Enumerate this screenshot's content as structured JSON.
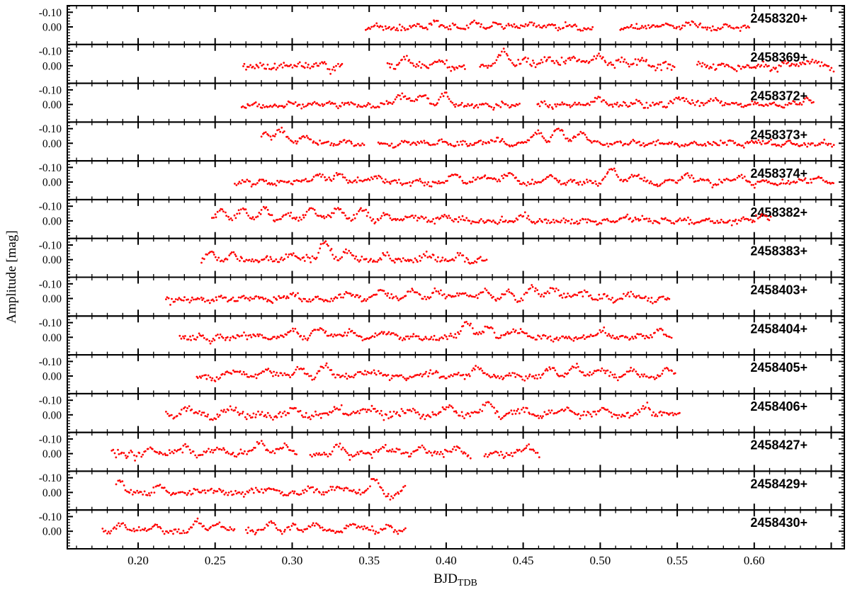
{
  "chart_data": {
    "type": "scatter",
    "title": "",
    "ylabel": "Amplitude [mag]",
    "xlabel": {
      "main": "BJD",
      "sub": "TDB"
    },
    "xlim": [
      0.154,
      0.6585
    ],
    "x_ticks": [
      0.2,
      0.25,
      0.3,
      0.35,
      0.4,
      0.45,
      0.5,
      0.55,
      0.6
    ],
    "x_tick_labels": [
      "0.20",
      "0.25",
      "0.30",
      "0.35",
      "0.40",
      "0.45",
      "0.50",
      "0.55",
      "0.60"
    ],
    "x_minor_step": 0.01,
    "y_axis_inverted": true,
    "ylim_per_panel": [
      -0.145,
      0.12
    ],
    "y_ticks": [
      -0.1,
      0.0
    ],
    "y_tick_labels": [
      "-0.10",
      "0.00"
    ],
    "y_minor_step": 0.02,
    "grid": false,
    "legend": "none",
    "marker": {
      "color": "#ff0000",
      "radius_px": 1.4
    },
    "defaults": {
      "cadence": 0.00095,
      "wiggle": [
        [
          0.0125,
          0.009
        ],
        [
          0.0205,
          0.006
        ],
        [
          0.07,
          0.004
        ]
      ]
    },
    "panels": [
      {
        "label": "2458320+",
        "sigma": 0.009,
        "segments": [
          [
            0.348,
            0.496
          ],
          [
            0.513,
            0.597
          ]
        ],
        "events": [
          [
            0.392,
            -0.034,
            0.0038
          ],
          [
            0.418,
            -0.025,
            0.0038
          ],
          [
            0.433,
            -0.03,
            0.0038
          ],
          [
            0.452,
            -0.026,
            0.0032
          ],
          [
            0.56,
            -0.025,
            0.0038
          ]
        ]
      },
      {
        "label": "2458369+",
        "sigma": 0.012,
        "wiggle": [
          [
            0.013,
            0.011
          ],
          [
            0.0205,
            0.007
          ],
          [
            0.065,
            0.005
          ]
        ],
        "segments": [
          [
            0.268,
            0.333
          ],
          [
            0.362,
            0.413
          ],
          [
            0.422,
            0.549
          ],
          [
            0.563,
            0.652
          ]
        ],
        "events": [
          [
            0.375,
            -0.04,
            0.0036
          ],
          [
            0.394,
            -0.045,
            0.0032
          ],
          [
            0.437,
            -0.075,
            0.0038
          ],
          [
            0.452,
            -0.05,
            0.0036
          ],
          [
            0.468,
            -0.062,
            0.0036
          ],
          [
            0.483,
            -0.055,
            0.0036
          ],
          [
            0.498,
            -0.065,
            0.0036
          ],
          [
            0.512,
            -0.042,
            0.0036
          ],
          [
            0.527,
            -0.05,
            0.0036
          ],
          [
            0.637,
            -0.045,
            0.0032
          ]
        ]
      },
      {
        "label": "2458372+",
        "sigma": 0.009,
        "segments": [
          [
            0.267,
            0.448
          ],
          [
            0.459,
            0.639
          ]
        ],
        "events": [
          [
            0.37,
            -0.075,
            0.0034
          ],
          [
            0.384,
            -0.058,
            0.0034
          ],
          [
            0.399,
            -0.05,
            0.0038
          ],
          [
            0.498,
            -0.038,
            0.0038
          ],
          [
            0.553,
            -0.055,
            0.0038
          ],
          [
            0.573,
            -0.04,
            0.0038
          ],
          [
            0.634,
            -0.046,
            0.003
          ]
        ]
      },
      {
        "label": "2458373+",
        "sigma": 0.008,
        "segments": [
          [
            0.28,
            0.347
          ],
          [
            0.356,
            0.652
          ]
        ],
        "events": [
          [
            0.282,
            -0.08,
            0.0028
          ],
          [
            0.292,
            -0.105,
            0.0032
          ],
          [
            0.307,
            -0.045,
            0.0036
          ],
          [
            0.43,
            -0.034,
            0.0038
          ],
          [
            0.459,
            -0.06,
            0.0038
          ],
          [
            0.473,
            -0.1,
            0.0038
          ],
          [
            0.488,
            -0.085,
            0.0038
          ]
        ]
      },
      {
        "label": "2458374+",
        "sigma": 0.008,
        "segments": [
          [
            0.263,
            0.652
          ]
        ],
        "events": [
          [
            0.316,
            -0.05,
            0.0038
          ],
          [
            0.33,
            -0.065,
            0.0038
          ],
          [
            0.352,
            -0.035,
            0.0038
          ],
          [
            0.405,
            -0.05,
            0.0038
          ],
          [
            0.425,
            -0.04,
            0.0038
          ],
          [
            0.44,
            -0.056,
            0.0038
          ],
          [
            0.468,
            -0.04,
            0.0038
          ],
          [
            0.508,
            -0.088,
            0.0034
          ],
          [
            0.523,
            -0.055,
            0.0038
          ],
          [
            0.556,
            -0.045,
            0.0038
          ],
          [
            0.59,
            -0.042,
            0.0038
          ],
          [
            0.64,
            -0.036,
            0.003
          ]
        ]
      },
      {
        "label": "2458382+",
        "sigma": 0.01,
        "wiggle": [
          [
            0.013,
            0.01
          ],
          [
            0.0205,
            0.007
          ],
          [
            0.065,
            0.004
          ]
        ],
        "segments": [
          [
            0.248,
            0.611
          ]
        ],
        "events": [
          [
            0.253,
            -0.085,
            0.003
          ],
          [
            0.268,
            -0.065,
            0.0038
          ],
          [
            0.282,
            -0.072,
            0.0038
          ],
          [
            0.297,
            -0.055,
            0.0038
          ],
          [
            0.313,
            -0.092,
            0.0034
          ],
          [
            0.329,
            -0.088,
            0.0034
          ],
          [
            0.345,
            -0.065,
            0.0038
          ],
          [
            0.36,
            -0.05,
            0.0038
          ],
          [
            0.378,
            -0.042,
            0.0038
          ],
          [
            0.398,
            -0.035,
            0.0038
          ],
          [
            0.45,
            -0.03,
            0.0038
          ],
          [
            0.52,
            -0.032,
            0.0038
          ],
          [
            0.605,
            -0.042,
            0.003
          ]
        ]
      },
      {
        "label": "2458383+",
        "sigma": 0.011,
        "segments": [
          [
            0.241,
            0.427
          ]
        ],
        "events": [
          [
            0.248,
            -0.046,
            0.003
          ],
          [
            0.262,
            -0.035,
            0.003
          ],
          [
            0.3,
            -0.03,
            0.003
          ],
          [
            0.321,
            -0.112,
            0.0034
          ],
          [
            0.336,
            -0.065,
            0.0034
          ],
          [
            0.36,
            -0.032,
            0.003
          ],
          [
            0.39,
            -0.036,
            0.003
          ],
          [
            0.41,
            -0.03,
            0.003
          ]
        ]
      },
      {
        "label": "2458403+",
        "sigma": 0.009,
        "segments": [
          [
            0.218,
            0.545
          ]
        ],
        "events": [
          [
            0.3,
            -0.03,
            0.0038
          ],
          [
            0.335,
            -0.036,
            0.0038
          ],
          [
            0.358,
            -0.05,
            0.0038
          ],
          [
            0.378,
            -0.055,
            0.0038
          ],
          [
            0.394,
            -0.06,
            0.003
          ],
          [
            0.41,
            -0.046,
            0.003
          ],
          [
            0.425,
            -0.056,
            0.003
          ],
          [
            0.44,
            -0.04,
            0.003
          ],
          [
            0.456,
            -0.086,
            0.0034
          ],
          [
            0.47,
            -0.072,
            0.0034
          ],
          [
            0.488,
            -0.046,
            0.0038
          ],
          [
            0.52,
            -0.036,
            0.0038
          ]
        ]
      },
      {
        "label": "2458404+",
        "sigma": 0.009,
        "segments": [
          [
            0.227,
            0.547
          ]
        ],
        "events": [
          [
            0.27,
            -0.03,
            0.0038
          ],
          [
            0.3,
            -0.04,
            0.0038
          ],
          [
            0.318,
            -0.055,
            0.0038
          ],
          [
            0.335,
            -0.046,
            0.0038
          ],
          [
            0.36,
            -0.035,
            0.0038
          ],
          [
            0.413,
            -0.115,
            0.0034
          ],
          [
            0.427,
            -0.075,
            0.0034
          ],
          [
            0.447,
            -0.046,
            0.0038
          ],
          [
            0.5,
            -0.036,
            0.0038
          ],
          [
            0.538,
            -0.06,
            0.003
          ]
        ]
      },
      {
        "label": "2458405+",
        "sigma": 0.009,
        "segments": [
          [
            0.238,
            0.549
          ]
        ],
        "events": [
          [
            0.263,
            -0.036,
            0.0038
          ],
          [
            0.285,
            -0.04,
            0.0038
          ],
          [
            0.305,
            -0.055,
            0.0034
          ],
          [
            0.322,
            -0.07,
            0.0034
          ],
          [
            0.35,
            -0.04,
            0.0038
          ],
          [
            0.39,
            -0.036,
            0.0038
          ],
          [
            0.42,
            -0.05,
            0.0038
          ],
          [
            0.468,
            -0.06,
            0.0034
          ],
          [
            0.484,
            -0.065,
            0.0034
          ],
          [
            0.5,
            -0.056,
            0.0034
          ],
          [
            0.52,
            -0.046,
            0.0038
          ],
          [
            0.543,
            -0.04,
            0.003
          ]
        ]
      },
      {
        "label": "2458406+",
        "sigma": 0.012,
        "segments": [
          [
            0.218,
            0.552
          ]
        ],
        "events": [
          [
            0.232,
            -0.055,
            0.0034
          ],
          [
            0.26,
            -0.04,
            0.0038
          ],
          [
            0.3,
            -0.046,
            0.0038
          ],
          [
            0.33,
            -0.05,
            0.0038
          ],
          [
            0.35,
            -0.055,
            0.0038
          ],
          [
            0.375,
            -0.046,
            0.0038
          ],
          [
            0.4,
            -0.055,
            0.0038
          ],
          [
            0.427,
            -0.088,
            0.0034
          ],
          [
            0.45,
            -0.05,
            0.0038
          ],
          [
            0.475,
            -0.046,
            0.0038
          ],
          [
            0.5,
            -0.04,
            0.0038
          ],
          [
            0.53,
            -0.046,
            0.0038
          ]
        ]
      },
      {
        "label": "2458427+",
        "sigma": 0.011,
        "segments": [
          [
            0.183,
            0.303
          ],
          [
            0.312,
            0.416
          ],
          [
            0.425,
            0.461
          ]
        ],
        "events": [
          [
            0.21,
            -0.035,
            0.0038
          ],
          [
            0.23,
            -0.04,
            0.0038
          ],
          [
            0.252,
            -0.046,
            0.0038
          ],
          [
            0.278,
            -0.086,
            0.0034
          ],
          [
            0.295,
            -0.046,
            0.0038
          ],
          [
            0.33,
            -0.05,
            0.0038
          ],
          [
            0.36,
            -0.046,
            0.0038
          ],
          [
            0.385,
            -0.04,
            0.0038
          ],
          [
            0.405,
            -0.046,
            0.0038
          ],
          [
            0.452,
            -0.046,
            0.0038
          ]
        ]
      },
      {
        "label": "2458429+",
        "sigma": 0.01,
        "segments": [
          [
            0.186,
            0.374
          ]
        ],
        "events": [
          [
            0.188,
            -0.065,
            0.003
          ],
          [
            0.215,
            -0.04,
            0.0038
          ],
          [
            0.245,
            -0.036,
            0.0038
          ],
          [
            0.285,
            -0.04,
            0.0038
          ],
          [
            0.31,
            -0.036,
            0.0038
          ],
          [
            0.33,
            -0.04,
            0.0038
          ],
          [
            0.354,
            -0.096,
            0.0034
          ],
          [
            0.362,
            0.045,
            0.0034
          ],
          [
            0.371,
            -0.04,
            0.003
          ]
        ]
      },
      {
        "label": "2458430+",
        "sigma": 0.009,
        "segments": [
          [
            0.177,
            0.263
          ],
          [
            0.27,
            0.374
          ]
        ],
        "events": [
          [
            0.19,
            -0.046,
            0.003
          ],
          [
            0.212,
            -0.036,
            0.0038
          ],
          [
            0.238,
            -0.076,
            0.0034
          ],
          [
            0.253,
            -0.05,
            0.0038
          ],
          [
            0.285,
            -0.046,
            0.0038
          ],
          [
            0.3,
            -0.04,
            0.0038
          ],
          [
            0.315,
            -0.055,
            0.0038
          ],
          [
            0.34,
            -0.05,
            0.0042
          ],
          [
            0.362,
            -0.036,
            0.0038
          ]
        ]
      }
    ]
  }
}
